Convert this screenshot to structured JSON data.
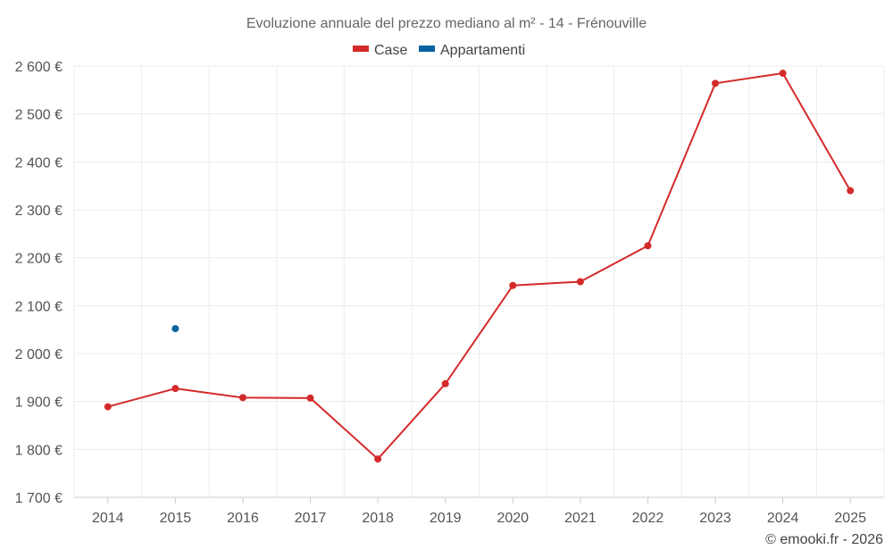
{
  "chart_data": {
    "type": "line",
    "title": "Evoluzione annuale del prezzo mediano al m² - 14 - Frénouville",
    "categories": [
      "2014",
      "2015",
      "2016",
      "2017",
      "2018",
      "2019",
      "2020",
      "2021",
      "2022",
      "2023",
      "2024",
      "2025"
    ],
    "series": [
      {
        "name": "Case",
        "color": "#d42a2a",
        "values": [
          1889,
          1927,
          1908,
          1907,
          1780,
          1937,
          2142,
          2150,
          2225,
          2564,
          2585,
          2340
        ]
      },
      {
        "name": "Appartamenti",
        "color": "#0a63a0",
        "values": [
          null,
          2052,
          null,
          null,
          null,
          null,
          null,
          null,
          null,
          null,
          null,
          null
        ]
      }
    ],
    "ylim": [
      1700,
      2600
    ],
    "yticks": [
      1700,
      1800,
      1900,
      2000,
      2100,
      2200,
      2300,
      2400,
      2500,
      2600
    ],
    "ytick_labels": [
      "1 700 €",
      "1 800 €",
      "1 900 €",
      "2 000 €",
      "2 100 €",
      "2 200 €",
      "2 300 €",
      "2 400 €",
      "2 500 €",
      "2 600 €"
    ],
    "xlabel": "",
    "ylabel": "",
    "grid": true,
    "legend": "top-center"
  },
  "credit": "© emooki.fr - 2026"
}
